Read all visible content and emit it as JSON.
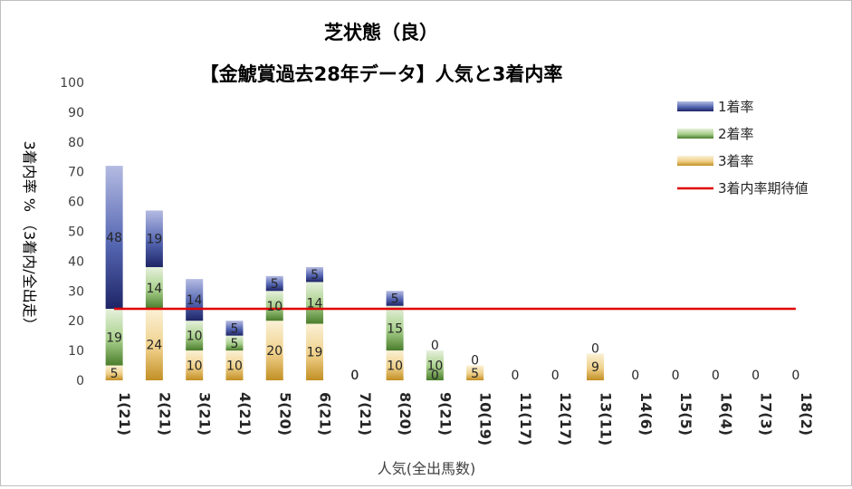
{
  "chart_data": {
    "type": "bar",
    "stacked": true,
    "title": "芝状態（良）",
    "subtitle": "【金鯱賞過去28年データ】人気と3着内率",
    "xlabel": "人気(全出馬数)",
    "ylabel": "3着内率 %  （3着内/全出走）",
    "ylim": [
      0,
      100
    ],
    "yticks": [
      "0",
      "10",
      "20",
      "30",
      "40",
      "50",
      "60",
      "70",
      "80",
      "90",
      "100"
    ],
    "legend_position": "top-right",
    "categories": [
      "1(21)",
      "2(21)",
      "3(21)",
      "4(21)",
      "5(20)",
      "6(21)",
      "7(21)",
      "8(20)",
      "9(21)",
      "10(19)",
      "11(17)",
      "12(17)",
      "13(11)",
      "14(6)",
      "15(5)",
      "16(4)",
      "17(3)",
      "18(2)"
    ],
    "series": [
      {
        "name": "3着率",
        "color": "#d4a640",
        "values": [
          5,
          24,
          10,
          10,
          20,
          19,
          0,
          10,
          0,
          5,
          0,
          0,
          9,
          0,
          0,
          0,
          0,
          0
        ],
        "labels": [
          "5",
          "24",
          "10",
          "10",
          "20",
          "19",
          "0",
          "10",
          "0",
          "5",
          "",
          "",
          "9",
          "",
          "",
          "",
          "",
          ""
        ]
      },
      {
        "name": "2着率",
        "color": "#70ad47",
        "values": [
          19,
          14,
          10,
          5,
          10,
          14,
          0,
          15,
          10,
          0,
          0,
          0,
          0,
          0,
          0,
          0,
          0,
          0
        ],
        "labels": [
          "19",
          "14",
          "10",
          "5",
          "10",
          "14",
          "0",
          "15",
          "10",
          "",
          "",
          "",
          "",
          "",
          "",
          "",
          "",
          ""
        ]
      },
      {
        "name": "1着率",
        "color": "#3f4f9f",
        "values": [
          48,
          19,
          14,
          5,
          5,
          5,
          0,
          5,
          0,
          0,
          0,
          0,
          0,
          0,
          0,
          0,
          0,
          0
        ],
        "labels": [
          "48",
          "19",
          "14",
          "5",
          "5",
          "5",
          "0",
          "5",
          "0",
          "0",
          "0",
          "0",
          "0",
          "0",
          "0",
          "0",
          "0",
          "0"
        ]
      }
    ],
    "reference_line": {
      "name": "3着内率期待値",
      "value": 24,
      "color": "#e00000"
    }
  }
}
